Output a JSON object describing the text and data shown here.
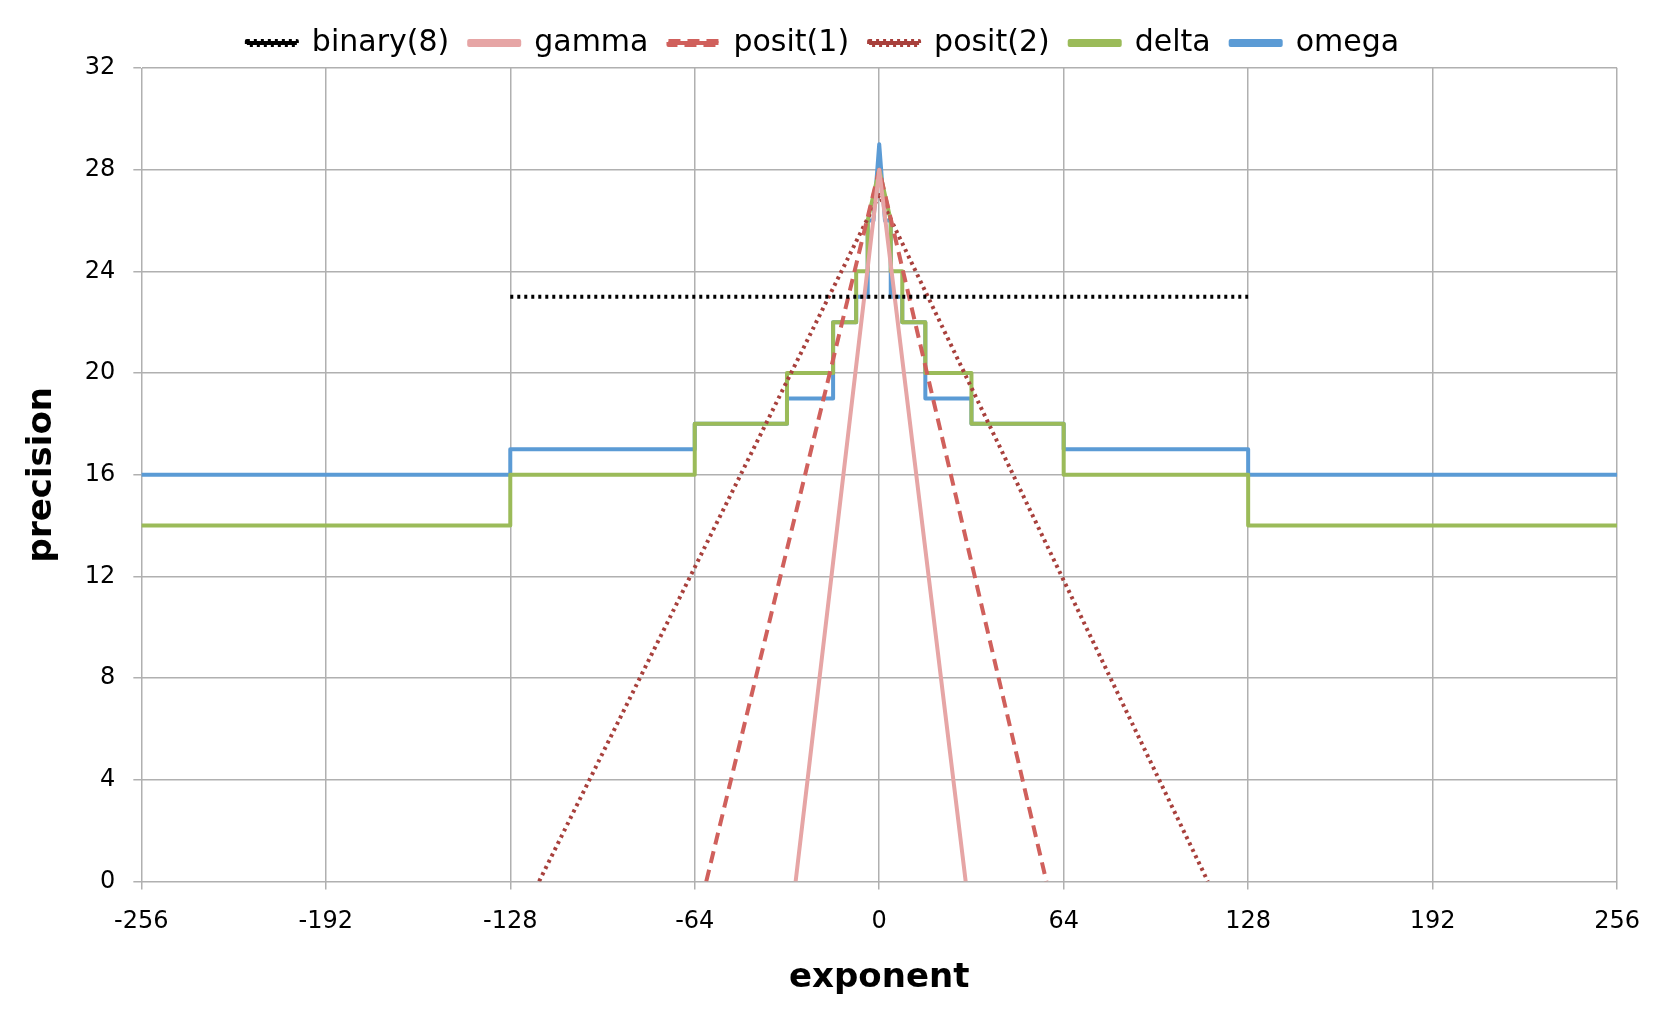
{
  "chart_data": {
    "type": "line",
    "xlabel": "exponent",
    "ylabel": "precision",
    "xlim": [
      -256,
      256
    ],
    "xticks": [
      -256,
      -192,
      -128,
      -64,
      0,
      64,
      128,
      192,
      256
    ],
    "ylim": [
      0,
      32
    ],
    "yticks": [
      0,
      4,
      8,
      12,
      16,
      20,
      24,
      28,
      32
    ],
    "grid": true,
    "legend": "top",
    "marker": "none",
    "series": [
      {
        "name": "binary(8)",
        "color": "#000000",
        "line_style": "dotted",
        "x": [
          -128,
          128
        ],
        "values": [
          23,
          23
        ]
      },
      {
        "name": "gamma",
        "color": "#e6a5a5",
        "line_style": "solid",
        "x": [
          -29,
          0,
          30
        ],
        "values": [
          0,
          28,
          0
        ]
      },
      {
        "name": "posit(1)",
        "color": "#d0605c",
        "line_style": "dashed",
        "x": [
          -60,
          0,
          58
        ],
        "values": [
          0,
          28,
          0
        ]
      },
      {
        "name": "posit(2)",
        "color": "#a8403c",
        "line_style": "dotted",
        "x": [
          -118,
          0,
          114
        ],
        "values": [
          0,
          27,
          0
        ]
      },
      {
        "name": "delta",
        "color": "#9bbb59",
        "line_style": "solid",
        "x": [
          -256,
          -128,
          -128,
          -64,
          -64,
          -32,
          -32,
          -16,
          -16,
          -8,
          -8,
          -4,
          -4,
          0,
          4,
          4,
          8,
          8,
          16,
          16,
          32,
          32,
          64,
          64,
          128,
          128,
          256
        ],
        "values": [
          14,
          14,
          16,
          16,
          18,
          18,
          20,
          20,
          22,
          22,
          24,
          24,
          26,
          28,
          26,
          24,
          24,
          22,
          22,
          20,
          20,
          18,
          18,
          16,
          16,
          14,
          14
        ]
      },
      {
        "name": "omega",
        "color": "#5b9bd5",
        "line_style": "solid",
        "x": [
          -256,
          -128,
          -128,
          -64,
          -64,
          -32,
          -32,
          -16,
          -16,
          -8,
          -8,
          -4,
          -4,
          -2,
          0,
          2,
          4,
          4,
          8,
          8,
          16,
          16,
          32,
          32,
          64,
          64,
          128,
          128,
          256
        ],
        "values": [
          16,
          16,
          17,
          17,
          18,
          18,
          19,
          19,
          22,
          22,
          23,
          23,
          26,
          26,
          29,
          26,
          26,
          23,
          23,
          22,
          22,
          19,
          19,
          18,
          18,
          17,
          17,
          16,
          16
        ]
      }
    ]
  }
}
